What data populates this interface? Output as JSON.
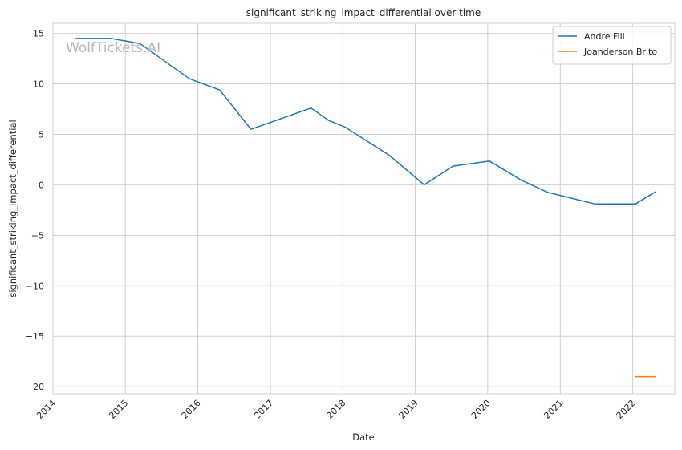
{
  "chart_data": {
    "type": "line",
    "title": "significant_striking_impact_differential over time",
    "xlabel": "Date",
    "ylabel": "significant_striking_impact_differential",
    "watermark": "WolfTickets.AI",
    "xlim": [
      "2014-01-01",
      "2022-08-01"
    ],
    "ylim": [
      -20.7,
      16
    ],
    "x_ticks": [
      "2014",
      "2015",
      "2016",
      "2017",
      "2018",
      "2019",
      "2020",
      "2021",
      "2022"
    ],
    "y_ticks": [
      15,
      10,
      5,
      0,
      -5,
      -10,
      -15,
      -20
    ],
    "y_tick_labels": [
      "15",
      "10",
      "5",
      "0",
      "−5",
      "−10",
      "−15",
      "−20"
    ],
    "grid": true,
    "legend_position": "top-right",
    "series": [
      {
        "name": "Andre Fili",
        "color": "#1f77b4",
        "points": [
          {
            "x": "2014-04-25",
            "y": 14.5
          },
          {
            "x": "2014-10-20",
            "y": 14.5
          },
          {
            "x": "2015-03-15",
            "y": 14.0
          },
          {
            "x": "2015-11-20",
            "y": 10.5
          },
          {
            "x": "2016-04-20",
            "y": 9.4
          },
          {
            "x": "2016-09-25",
            "y": 5.5
          },
          {
            "x": "2017-07-25",
            "y": 7.6
          },
          {
            "x": "2017-10-20",
            "y": 6.4
          },
          {
            "x": "2018-01-15",
            "y": 5.7
          },
          {
            "x": "2018-08-25",
            "y": 2.9
          },
          {
            "x": "2019-02-15",
            "y": 0.0
          },
          {
            "x": "2019-07-10",
            "y": 1.85
          },
          {
            "x": "2020-01-10",
            "y": 2.35
          },
          {
            "x": "2020-06-20",
            "y": 0.45
          },
          {
            "x": "2020-10-31",
            "y": -0.75
          },
          {
            "x": "2021-06-25",
            "y": -1.9
          },
          {
            "x": "2022-01-15",
            "y": -1.9
          },
          {
            "x": "2022-04-30",
            "y": -0.65
          }
        ]
      },
      {
        "name": "Joanderson Brito",
        "color": "#ff7f0e",
        "points": [
          {
            "x": "2022-01-15",
            "y": -19.0
          },
          {
            "x": "2022-04-30",
            "y": -19.0
          }
        ]
      }
    ]
  }
}
